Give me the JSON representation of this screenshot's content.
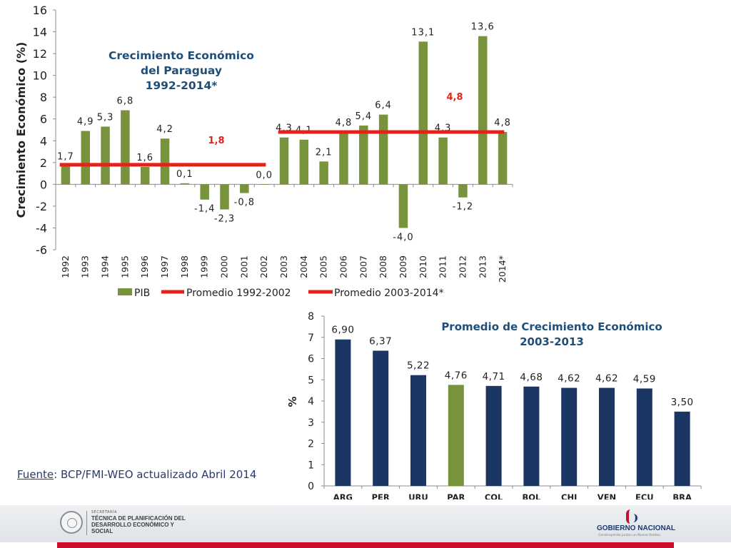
{
  "chart_data": [
    {
      "type": "bar",
      "title": "Crecimiento Económico del Paraguay 1992-2014*",
      "title_lines": [
        "Crecimiento Económico",
        "del Paraguay",
        "1992-2014*"
      ],
      "ylabel": "Crecimiento Económico (%)",
      "ylim": [
        -6,
        16
      ],
      "yticks": [
        "-6",
        "-4",
        "-2",
        "0",
        "2",
        "4",
        "6",
        "8",
        "10",
        "12",
        "14",
        "16"
      ],
      "ytick_values": [
        -6,
        -4,
        -2,
        0,
        2,
        4,
        6,
        8,
        10,
        12,
        14,
        16
      ],
      "categories": [
        "1992",
        "1993",
        "1994",
        "1995",
        "1996",
        "1997",
        "1998",
        "1999",
        "2000",
        "2001",
        "2002",
        "2003",
        "2004",
        "2005",
        "2006",
        "2007",
        "2008",
        "2009",
        "2010",
        "2011",
        "2012",
        "2013",
        "2014*"
      ],
      "series": [
        {
          "name": "PIB",
          "color": "#77933c",
          "values": [
            1.7,
            4.9,
            5.3,
            6.8,
            1.6,
            4.2,
            0.1,
            -1.4,
            -2.3,
            -0.8,
            0.0,
            4.3,
            4.1,
            2.1,
            4.8,
            5.4,
            6.4,
            -4.0,
            13.1,
            4.3,
            -1.2,
            13.6,
            4.8
          ],
          "labels": [
            "1,7",
            "4,9",
            "5,3",
            "6,8",
            "1,6",
            "4,2",
            "0,1",
            "-1,4",
            "-2,3",
            "-0,8",
            "0,0",
            "4,3",
            "4,1",
            "2,1",
            "4,8",
            "5,4",
            "6,4",
            "-4,0",
            "13,1",
            "4,3",
            "-1,2",
            "13,6",
            "4,8"
          ]
        }
      ],
      "averages": [
        {
          "name": "Promedio 1992-2002",
          "value": 1.8,
          "label": "1,8",
          "from": "1992",
          "to": "2002",
          "color": "#e8201a"
        },
        {
          "name": "Promedio 2003-2014*",
          "value": 4.8,
          "label": "4,8",
          "from": "2003",
          "to": "2014*",
          "color": "#e8201a"
        }
      ],
      "legend": [
        "PIB",
        "Promedio 1992-2002",
        "Promedio 2003-2014*"
      ],
      "legend_position": "bottom",
      "grid": false
    },
    {
      "type": "bar",
      "title": "Promedio de Crecimiento Económico 2003-2013",
      "title_lines": [
        "Promedio de Crecimiento Económico",
        "2003-2013"
      ],
      "ylabel": "%",
      "ylim": [
        0,
        8
      ],
      "yticks": [
        "0",
        "1",
        "2",
        "3",
        "4",
        "5",
        "6",
        "7",
        "8"
      ],
      "ytick_values": [
        0,
        1,
        2,
        3,
        4,
        5,
        6,
        7,
        8
      ],
      "categories": [
        "ARG",
        "PER",
        "URU",
        "PAR",
        "COL",
        "BOL",
        "CHI",
        "VEN",
        "ECU",
        "BRA"
      ],
      "values": [
        6.9,
        6.37,
        5.22,
        4.76,
        4.71,
        4.68,
        4.62,
        4.62,
        4.59,
        3.5
      ],
      "labels": [
        "6,90",
        "6,37",
        "5,22",
        "4,76",
        "4,71",
        "4,68",
        "4,62",
        "4,62",
        "4,59",
        "3,50"
      ],
      "colors": {
        "default": "#1c3664",
        "highlight": "#77933c",
        "highlight_category": "PAR"
      },
      "grid": false
    }
  ],
  "source": {
    "label": "Fuente",
    "text": ": BCP/FMI-WEO actualizado Abril 2014"
  },
  "footer": {
    "secretaria": "SECRETARÍA",
    "institution": "TÉCNICA DE PLANIFICACIÓN DEL DESARROLLO ECONÓMICO Y SOCIAL",
    "gobierno": "GOBIERNO NACIONAL",
    "slogan": "Construyendo juntos un Nuevo Rumbo"
  }
}
